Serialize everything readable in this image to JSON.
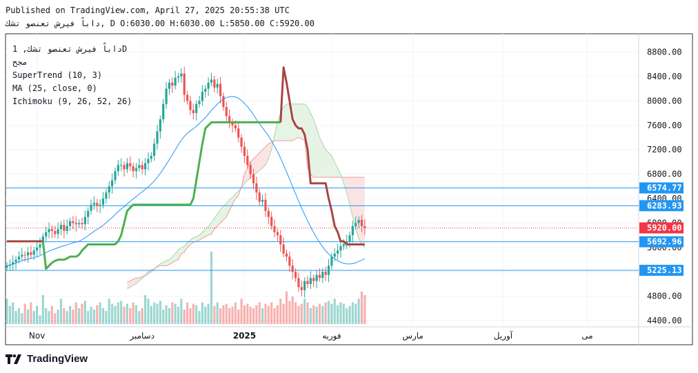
{
  "header": {
    "published": "Published on TradingView.com, April 27, 2025 20:55:38 UTC",
    "symbol_line": "داباً فيرش تعنصو تشك, D O:6030.00 H:6030.00 L:5850.00 C:5920.00"
  },
  "legend": {
    "symbol": "داباً فيرش تعنصو تشك, 1D",
    "exchange": "مجح",
    "supertrend": "SuperTrend (10, 3)",
    "ma": "MA (25, close, 0)",
    "ichimoku": "Ichimoku (9, 26, 52, 26)"
  },
  "branding": {
    "name": "TradingView"
  },
  "colors": {
    "up": "#26a69a",
    "down": "#ef5350",
    "supertrend_up": "#4caf50",
    "supertrend_down": "#a94442",
    "ma": "#2196f3",
    "cloud_green": "#e5f3e5",
    "cloud_red": "#fbe3e3",
    "hline": "#2196f3",
    "last_price": "#f23645"
  },
  "chart_data": {
    "type": "candlestick",
    "ylim": [
      4300,
      9100
    ],
    "y_ticks": [
      "8800.00",
      "8400.00",
      "8000.00",
      "7600.00",
      "7200.00",
      "6800.00",
      "6400.00",
      "6000.00",
      "5600.00",
      "5200.00",
      "4800.00",
      "4400.00"
    ],
    "y_tick_values": [
      8800,
      8400,
      8000,
      7600,
      7200,
      6800,
      6400,
      6000,
      5600,
      5200,
      4800,
      4400
    ],
    "x_labels": [
      {
        "label": "Nov",
        "bar": 10
      },
      {
        "label": "دسامبر",
        "bar": 45
      },
      {
        "label": "2025",
        "bar": 79
      },
      {
        "label": "فوريه",
        "bar": 108
      },
      {
        "label": "مارس",
        "bar": 135
      },
      {
        "label": "آوريل",
        "bar": 165
      },
      {
        "label": "مى",
        "bar": 193
      }
    ],
    "horizontal_lines": [
      {
        "label": "6574.77",
        "value": 6574.77
      },
      {
        "label": "6283.93",
        "value": 6283.93
      },
      {
        "label": "5692.96",
        "value": 5692.96
      },
      {
        "label": "5225.13",
        "value": 5225.13
      }
    ],
    "last_price": {
      "label": "5920.00",
      "value": 5920
    },
    "close": [
      5300,
      5320,
      5360,
      5400,
      5450,
      5480,
      5470,
      5520,
      5480,
      5550,
      5600,
      5650,
      5780,
      5850,
      5900,
      5870,
      5820,
      5900,
      5970,
      5870,
      5950,
      6030,
      6000,
      5980,
      6000,
      5980,
      6100,
      6200,
      6300,
      6330,
      6280,
      6300,
      6400,
      6500,
      6600,
      6700,
      6850,
      6950,
      6950,
      6880,
      6980,
      6930,
      6850,
      6900,
      6950,
      6880,
      6980,
      7050,
      7100,
      7300,
      7500,
      7700,
      7950,
      8200,
      8300,
      8250,
      8380,
      8400,
      8450,
      8100,
      8000,
      7850,
      7800,
      7950,
      8000,
      8150,
      8200,
      8300,
      8350,
      8220,
      8280,
      8080,
      7900,
      7750,
      7650,
      7600,
      7550,
      7400,
      7250,
      7100,
      6950,
      6800,
      6650,
      6500,
      6350,
      6380,
      6200,
      6100,
      5950,
      5850,
      5800,
      5650,
      5500,
      5450,
      5300,
      5200,
      5100,
      4950,
      4900,
      5050,
      5000,
      5100,
      5050,
      5150,
      5100,
      5200,
      5150,
      5300,
      5450,
      5500,
      5550,
      5620,
      5650,
      5700,
      5800,
      5950,
      6000,
      6050,
      5950,
      5920
    ],
    "ichimoku_span_a": [
      4920,
      4950,
      4980,
      5010,
      5050,
      5100,
      5130,
      5160,
      5200,
      5240,
      5300,
      5330,
      5360,
      5380,
      5400,
      5450,
      5500,
      5560,
      5600,
      5620,
      5680,
      5720,
      5760,
      5780,
      5800,
      5850,
      5900,
      5950,
      6000,
      6080,
      6150,
      6220,
      6280,
      6320,
      6380,
      6420,
      6480,
      6520,
      6580,
      6650,
      6700,
      6740,
      6780,
      6820,
      6860,
      6900,
      6950,
      7050,
      7200,
      7450,
      7650,
      7800,
      7900,
      7950,
      7950,
      7950,
      7950,
      7950,
      7950,
      7950,
      7900,
      7800,
      7700,
      7550,
      7400,
      7300,
      7200,
      7150,
      7100,
      7000,
      6900,
      6800,
      6650,
      6500,
      6300,
      6100,
      5900,
      5750,
      5650,
      5600
    ],
    "ichimoku_span_b": [
      5030,
      5050,
      5080,
      5100,
      5100,
      5120,
      5150,
      5200,
      5230,
      5250,
      5280,
      5300,
      5300,
      5300,
      5320,
      5350,
      5380,
      5400,
      5500,
      5520,
      5600,
      5650,
      5680,
      5700,
      5720,
      5750,
      5780,
      5800,
      5820,
      5900,
      5950,
      6000,
      6050,
      6100,
      6200,
      6300,
      6400,
      6450,
      6600,
      6800,
      6900,
      7000,
      7050,
      7100,
      7150,
      7200,
      7250,
      7300,
      7320,
      7350,
      7350,
      7350,
      7350,
      7350,
      7350,
      7350,
      7380,
      7400,
      7380,
      7350,
      6900,
      6800,
      6750,
      6750,
      6750,
      6750,
      6750,
      6750,
      6750,
      6750,
      6750,
      6750,
      6750,
      6750,
      6750,
      6750,
      6750,
      6750,
      6750,
      6750
    ],
    "supertrend": [
      5700,
      5700,
      5700,
      5700,
      5700,
      5700,
      5700,
      5700,
      5700,
      5700,
      5700,
      5700,
      5700,
      5250,
      5300,
      5350,
      5380,
      5400,
      5400,
      5400,
      5420,
      5450,
      5450,
      5450,
      5480,
      5550,
      5600,
      5650,
      5650,
      5650,
      5650,
      5650,
      5650,
      5650,
      5650,
      5650,
      5650,
      5700,
      5800,
      6000,
      6200,
      6250,
      6300,
      6300,
      6300,
      6300,
      6300,
      6300,
      6300,
      6300,
      6300,
      6300,
      6300,
      6300,
      6300,
      6300,
      6300,
      6300,
      6300,
      6300,
      6300,
      6300,
      6400,
      6700,
      7000,
      7300,
      7550,
      7600,
      7650,
      7650,
      7650,
      7650,
      7650,
      7650,
      7650,
      7650,
      7650,
      7650,
      7650,
      7650,
      7650,
      7650,
      7650,
      7650,
      7650,
      7650,
      7650,
      7650,
      7650,
      7650,
      7650,
      7650,
      8550,
      8300,
      8000,
      7700,
      7600,
      7550,
      7550,
      7450,
      7200,
      6650,
      6650,
      6650,
      6650,
      6650,
      6650,
      6400,
      6200,
      5950,
      5850,
      5700,
      5700,
      5650,
      5650,
      5650,
      5650,
      5650,
      5650,
      5650
    ],
    "supertrend_trend": [
      "d",
      "d",
      "d",
      "d",
      "d",
      "d",
      "d",
      "d",
      "d",
      "d",
      "d",
      "d",
      "d",
      "u",
      "u",
      "u",
      "u",
      "u",
      "u",
      "u",
      "u",
      "u",
      "u",
      "u",
      "u",
      "u",
      "u",
      "u",
      "u",
      "u",
      "u",
      "u",
      "u",
      "u",
      "u",
      "u",
      "u",
      "u",
      "u",
      "u",
      "u",
      "u",
      "u",
      "u",
      "u",
      "u",
      "u",
      "u",
      "u",
      "u",
      "u",
      "u",
      "u",
      "u",
      "u",
      "u",
      "u",
      "u",
      "u",
      "u",
      "u",
      "u",
      "u",
      "u",
      "u",
      "u",
      "u",
      "u",
      "u",
      "u",
      "u",
      "u",
      "u",
      "u",
      "u",
      "u",
      "u",
      "u",
      "u",
      "u",
      "u",
      "u",
      "u",
      "u",
      "u",
      "u",
      "u",
      "u",
      "u",
      "u",
      "u",
      "u",
      "d",
      "d",
      "d",
      "d",
      "d",
      "d",
      "d",
      "d",
      "d",
      "d",
      "d",
      "d",
      "d",
      "d",
      "d",
      "d",
      "d",
      "d",
      "d",
      "d",
      "d",
      "d",
      "d",
      "d",
      "d",
      "d",
      "d",
      "d"
    ],
    "volume": [
      35,
      25,
      30,
      18,
      22,
      15,
      28,
      20,
      30,
      18,
      25,
      12,
      40,
      22,
      18,
      25,
      15,
      20,
      35,
      22,
      18,
      25,
      20,
      30,
      22,
      28,
      32,
      18,
      24,
      20,
      26,
      30,
      22,
      18,
      35,
      28,
      25,
      30,
      32,
      24,
      28,
      22,
      30,
      26,
      18,
      22,
      40,
      35,
      25,
      30,
      28,
      32,
      20,
      26,
      22,
      30,
      28,
      24,
      35,
      20,
      30,
      22,
      28,
      26,
      18,
      30,
      24,
      28,
      100,
      25,
      30,
      22,
      26,
      28,
      22,
      24,
      30,
      20,
      35,
      26,
      28,
      24,
      22,
      26,
      30,
      22,
      28,
      25,
      30,
      22,
      26,
      35,
      28,
      45,
      32,
      38,
      30,
      25,
      28,
      35,
      30,
      22,
      26,
      24,
      28,
      25,
      30,
      32,
      28,
      35,
      26,
      30,
      28,
      22,
      25,
      30,
      28,
      35,
      45,
      40
    ]
  }
}
